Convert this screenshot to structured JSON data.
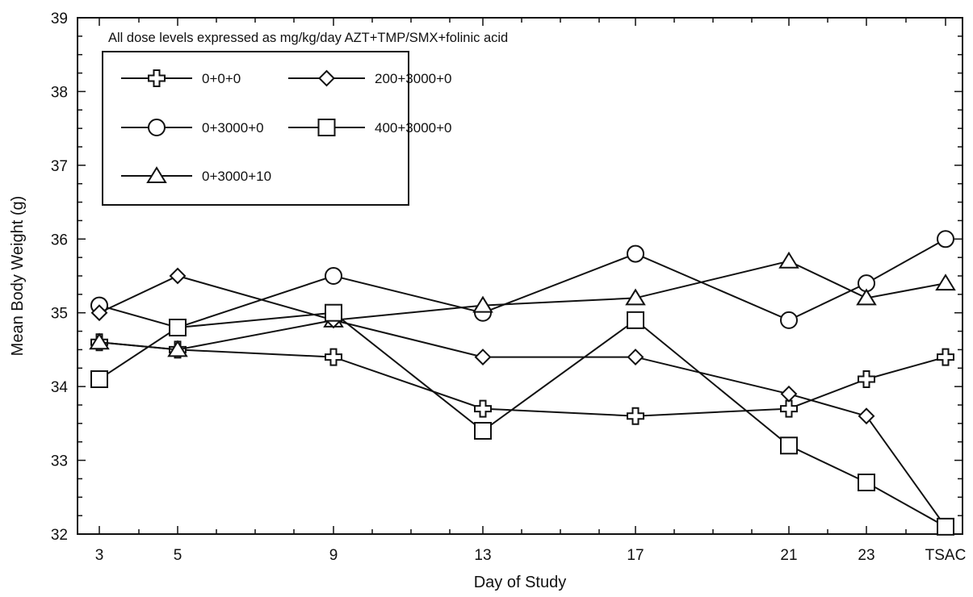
{
  "chart_data": {
    "type": "line",
    "title": "",
    "annotation": "All dose levels expressed as mg/kg/day AZT+TMP/SMX+folinic acid",
    "xlabel": "Day of Study",
    "ylabel": "Mean Body Weight (g)",
    "ylim": [
      32,
      39
    ],
    "yticks": [
      "32",
      "33",
      "34",
      "35",
      "36",
      "37",
      "38",
      "39"
    ],
    "x": [
      "3",
      "5",
      "9",
      "13",
      "17",
      "21",
      "23",
      "TSAC"
    ],
    "legend_position": "top-left",
    "grid": false,
    "series": [
      {
        "name": "0+0+0",
        "marker": "cross",
        "values": [
          34.6,
          34.5,
          34.4,
          33.7,
          33.6,
          33.7,
          34.1,
          34.4
        ]
      },
      {
        "name": "0+3000+0",
        "marker": "circle",
        "values": [
          35.1,
          34.8,
          35.5,
          35.0,
          35.8,
          34.9,
          35.4,
          36.0
        ]
      },
      {
        "name": "0+3000+10",
        "marker": "triangle",
        "values": [
          34.6,
          34.5,
          34.9,
          35.1,
          35.2,
          35.7,
          35.2,
          35.4
        ]
      },
      {
        "name": "200+3000+0",
        "marker": "diamond",
        "values": [
          35.0,
          35.5,
          34.9,
          34.4,
          34.4,
          33.9,
          33.6,
          32.1
        ]
      },
      {
        "name": "400+3000+0",
        "marker": "square",
        "values": [
          34.1,
          34.8,
          35.0,
          33.4,
          34.9,
          33.2,
          32.7,
          32.1
        ]
      }
    ]
  }
}
